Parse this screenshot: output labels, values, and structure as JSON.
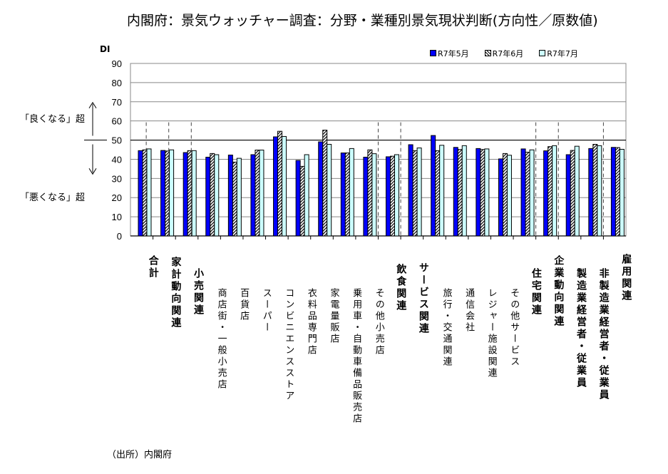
{
  "chart_data": {
    "type": "bar",
    "title": "内閣府：景気ウォッチャー調査：分野・業種別景気現状判断(方向性／原数値)",
    "ylabel": "DI",
    "ylim": [
      0,
      90
    ],
    "yticks": [
      0,
      10,
      20,
      30,
      40,
      50,
      60,
      70,
      80,
      90
    ],
    "grid": true,
    "reference_line": 50,
    "legend_placement": "top-right",
    "annotations": {
      "up": "「良くなる」超",
      "down": "「悪くなる」超"
    },
    "categories": [
      {
        "label": "合計",
        "bold": true
      },
      {
        "label": "家計動向関連",
        "bold": true
      },
      {
        "label": "小売関連",
        "bold": true
      },
      {
        "label": "商店街・一般小売店",
        "bold": false
      },
      {
        "label": "百貨店",
        "bold": false
      },
      {
        "label": "スーパー",
        "bold": false
      },
      {
        "label": "コンビニエンスストア",
        "bold": false
      },
      {
        "label": "衣料品専門店",
        "bold": false
      },
      {
        "label": "家電量販店",
        "bold": false
      },
      {
        "label": "乗用車・自動車備品販売店",
        "bold": false
      },
      {
        "label": "その他小売店",
        "bold": false
      },
      {
        "label": "飲食関連",
        "bold": true
      },
      {
        "label": "サービス関連",
        "bold": true
      },
      {
        "label": "旅行・交通関連",
        "bold": false
      },
      {
        "label": "通信会社",
        "bold": false
      },
      {
        "label": "レジャー施設関連",
        "bold": false
      },
      {
        "label": "その他サービス",
        "bold": false
      },
      {
        "label": "住宅関連",
        "bold": true
      },
      {
        "label": "企業動向関連",
        "bold": true
      },
      {
        "label": "製造業経営者・従業員",
        "bold": true
      },
      {
        "label": "非製造業経営者・従業員",
        "bold": true
      },
      {
        "label": "雇用関連",
        "bold": true
      }
    ],
    "series": [
      {
        "name": "R7年5月",
        "color": "#0000ff",
        "pattern": "solid",
        "values": [
          44.5,
          44.6,
          43.5,
          41.1,
          42.2,
          42.4,
          51.7,
          39.4,
          49.1,
          43.3,
          41.1,
          41.3,
          47.6,
          52.4,
          46.2,
          45.6,
          40.2,
          45.4,
          44.4,
          42.4,
          45.6,
          46.2
        ]
      },
      {
        "name": "R7年6月",
        "color": "#ffffff",
        "pattern": "hatched",
        "values": [
          44.9,
          44.3,
          44.5,
          43.0,
          38.5,
          44.8,
          54.6,
          36.3,
          55.2,
          43.3,
          44.9,
          41.6,
          44.5,
          44.5,
          45.1,
          45.1,
          43.0,
          43.7,
          46.6,
          44.6,
          47.8,
          46.1
        ]
      },
      {
        "name": "R7年7月",
        "color": "#ccffff",
        "pattern": "solid",
        "values": [
          45.4,
          44.9,
          44.5,
          42.4,
          40.5,
          44.8,
          51.9,
          42.4,
          47.8,
          45.6,
          42.9,
          42.4,
          45.9,
          47.3,
          47.1,
          45.4,
          42.1,
          44.9,
          47.1,
          46.8,
          47.1,
          45.2
        ]
      }
    ]
  },
  "source": "（出所）内閣府"
}
